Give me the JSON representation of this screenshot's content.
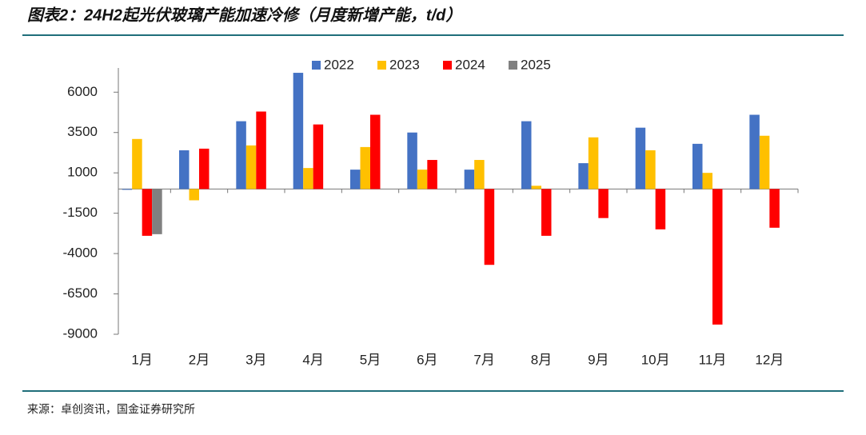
{
  "title": "图表2：24H2起光伏玻璃产能加速冷修（月度新增产能，t/d）",
  "source": "来源：卓创资讯，国金证券研究所",
  "chart_data": {
    "type": "bar",
    "categories": [
      "1月",
      "2月",
      "3月",
      "4月",
      "5月",
      "6月",
      "7月",
      "8月",
      "9月",
      "10月",
      "11月",
      "12月"
    ],
    "series": [
      {
        "name": "2022",
        "color": "#4472c4",
        "values": [
          -50,
          2400,
          4200,
          7200,
          1200,
          3500,
          1200,
          4200,
          1600,
          3800,
          2800,
          4600
        ]
      },
      {
        "name": "2023",
        "color": "#ffc000",
        "values": [
          3100,
          -700,
          2700,
          1300,
          2600,
          1200,
          1800,
          200,
          3200,
          2400,
          1000,
          3300
        ]
      },
      {
        "name": "2024",
        "color": "#ff0000",
        "values": [
          -2900,
          2500,
          4800,
          4000,
          4600,
          1800,
          -4700,
          -2900,
          -1800,
          -2500,
          -8400,
          -2400
        ]
      },
      {
        "name": "2025",
        "color": "#808080",
        "values": [
          -2800,
          null,
          null,
          null,
          null,
          null,
          null,
          null,
          null,
          null,
          null,
          null
        ]
      }
    ],
    "ylim": [
      -9000,
      7500
    ],
    "yticks": [
      6000,
      3500,
      1000,
      -1500,
      -4000,
      -6500,
      -9000
    ],
    "legend": "top"
  }
}
